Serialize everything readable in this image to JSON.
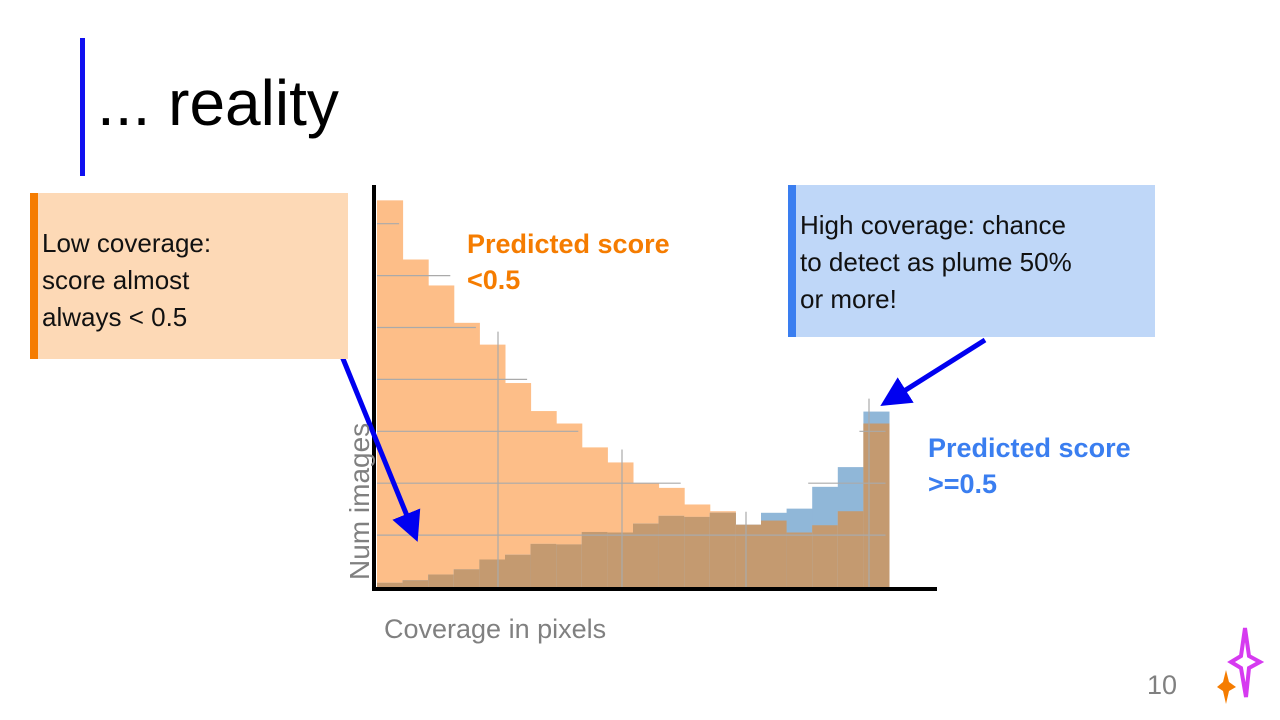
{
  "slide": {
    "title": "... reality",
    "page_number": "10",
    "left_callout": [
      "Low coverage:",
      "score almost",
      "always < 0.5"
    ],
    "right_callout": [
      "High coverage: chance",
      "to detect as plume 50%",
      "or more!"
    ],
    "colors": {
      "accent_blue": "#1010F0",
      "orange": "#F57C00",
      "blue": "#3A7EF0"
    }
  },
  "chart_data": {
    "type": "bar",
    "subtype": "overlaid-histogram",
    "xlabel": "Coverage in pixels",
    "ylabel": "Num images",
    "bins": 20,
    "y_units": "gridline units (axis unlabeled)",
    "ylim": [
      0,
      7.6
    ],
    "grid": true,
    "series": [
      {
        "name": "Predicted score <0.5",
        "color": "#FDBE88",
        "values": [
          7.45,
          6.31,
          5.81,
          5.09,
          4.67,
          3.93,
          3.39,
          3.15,
          2.69,
          2.4,
          2.0,
          1.91,
          1.59,
          1.46,
          1.2,
          1.28,
          1.05,
          1.19,
          1.46,
          3.15
        ]
      },
      {
        "name": "Predicted score >=0.5",
        "color": "#90B7D8",
        "values": [
          0.08,
          0.13,
          0.24,
          0.34,
          0.53,
          0.62,
          0.83,
          0.82,
          1.06,
          1.05,
          1.22,
          1.37,
          1.35,
          1.43,
          1.2,
          1.43,
          1.51,
          1.93,
          2.31,
          3.38
        ]
      }
    ],
    "overlap_color": "#C49A70"
  }
}
